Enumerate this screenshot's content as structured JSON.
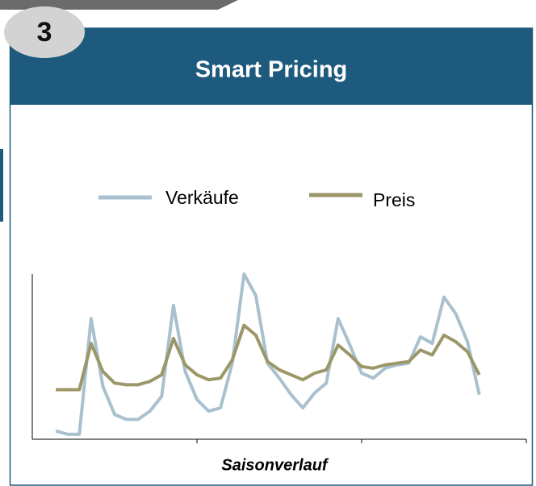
{
  "badge": "3",
  "header": "Smart Pricing",
  "chart_data": {
    "type": "line",
    "xlabel": "Saisonverlauf",
    "x": [
      2,
      3,
      4,
      5,
      6,
      7,
      8,
      9,
      10,
      11,
      12,
      13,
      14,
      15,
      16,
      17,
      18,
      19,
      20,
      21,
      22,
      23,
      24,
      25,
      26,
      27,
      28,
      29,
      30,
      31,
      32,
      33,
      34,
      35,
      36,
      37,
      38
    ],
    "series": [
      {
        "name": "Verkäufe",
        "color": "#a9c0cf",
        "values": [
          5,
          3,
          3,
          73,
          32,
          15,
          12,
          12,
          17,
          26,
          81,
          41,
          24,
          17,
          19,
          46,
          100,
          87,
          46,
          37,
          27,
          19,
          28,
          34,
          73,
          57,
          40,
          37,
          43,
          45,
          46,
          62,
          58,
          86,
          76,
          59,
          27
        ]
      },
      {
        "name": "Preis",
        "color": "#9c9768",
        "values": [
          30,
          30,
          30,
          58,
          41,
          34,
          33,
          33,
          35,
          39,
          61,
          45,
          39,
          36,
          37,
          48,
          69,
          63,
          47,
          42,
          39,
          36,
          40,
          42,
          57,
          51,
          44,
          43,
          45,
          46,
          47,
          54,
          51,
          63,
          59,
          53,
          39
        ]
      }
    ],
    "xlim": [
      0,
      42
    ],
    "xticks": [
      14,
      28,
      42
    ],
    "ylim": [
      0,
      100
    ]
  }
}
